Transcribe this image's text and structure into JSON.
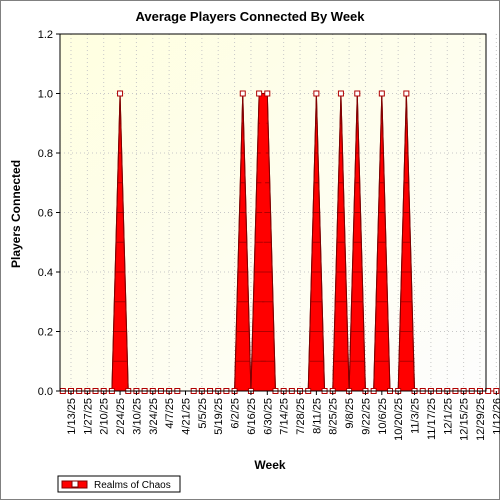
{
  "chart_data": {
    "type": "area",
    "title": "Average Players Connected By Week",
    "xlabel": "Week",
    "ylabel": "Players Connected",
    "ylim": [
      0,
      1.2
    ],
    "yticks": [
      "0.0",
      "0.2",
      "0.4",
      "0.6",
      "0.8",
      "1.0",
      "1.2"
    ],
    "xtick_labels": [
      "1/13/25",
      "1/27/25",
      "2/10/25",
      "2/24/25",
      "3/10/25",
      "3/24/25",
      "4/7/25",
      "4/21/25",
      "5/5/25",
      "5/19/25",
      "6/2/25",
      "6/16/25",
      "6/30/25",
      "7/14/25",
      "7/28/25",
      "8/11/25",
      "8/25/25",
      "9/8/25",
      "9/22/25",
      "10/6/25",
      "10/20/25",
      "11/3/25",
      "11/17/25",
      "12/1/25",
      "12/15/25",
      "12/29/25",
      "1/12/26"
    ],
    "x": [
      "1/6/25",
      "1/13/25",
      "1/20/25",
      "1/27/25",
      "2/3/25",
      "2/10/25",
      "2/17/25",
      "2/24/25",
      "3/3/25",
      "3/10/25",
      "3/17/25",
      "3/24/25",
      "3/31/25",
      "4/7/25",
      "4/14/25",
      "4/21/25",
      "4/28/25",
      "5/5/25",
      "5/12/25",
      "5/19/25",
      "5/26/25",
      "6/2/25",
      "6/9/25",
      "6/16/25",
      "6/23/25",
      "6/30/25",
      "7/7/25",
      "7/14/25",
      "7/21/25",
      "7/28/25",
      "8/4/25",
      "8/11/25",
      "8/18/25",
      "8/25/25",
      "9/1/25",
      "9/8/25",
      "9/15/25",
      "9/22/25",
      "9/29/25",
      "10/6/25",
      "10/13/25",
      "10/20/25",
      "10/27/25",
      "11/3/25",
      "11/10/25",
      "11/17/25",
      "11/24/25",
      "12/1/25",
      "12/8/25",
      "12/15/25",
      "12/22/25",
      "12/29/25",
      "1/5/26",
      "1/12/26"
    ],
    "series": [
      {
        "name": "Realms of Chaos",
        "color": "#ff0000",
        "values": [
          0,
          0,
          0,
          0,
          0,
          0,
          0,
          1,
          0,
          0,
          0,
          0,
          0,
          0,
          0,
          null,
          0,
          0,
          0,
          0,
          0,
          0,
          1,
          0,
          1,
          1,
          0,
          0,
          0,
          0,
          0,
          1,
          0,
          0,
          1,
          0,
          1,
          0,
          0,
          1,
          0,
          0,
          1,
          0,
          0,
          0,
          0,
          0,
          0,
          0,
          0,
          0,
          0,
          0
        ]
      }
    ],
    "grid": true,
    "legend_position": "bottom-left",
    "plot_background": "#ffffdd"
  }
}
